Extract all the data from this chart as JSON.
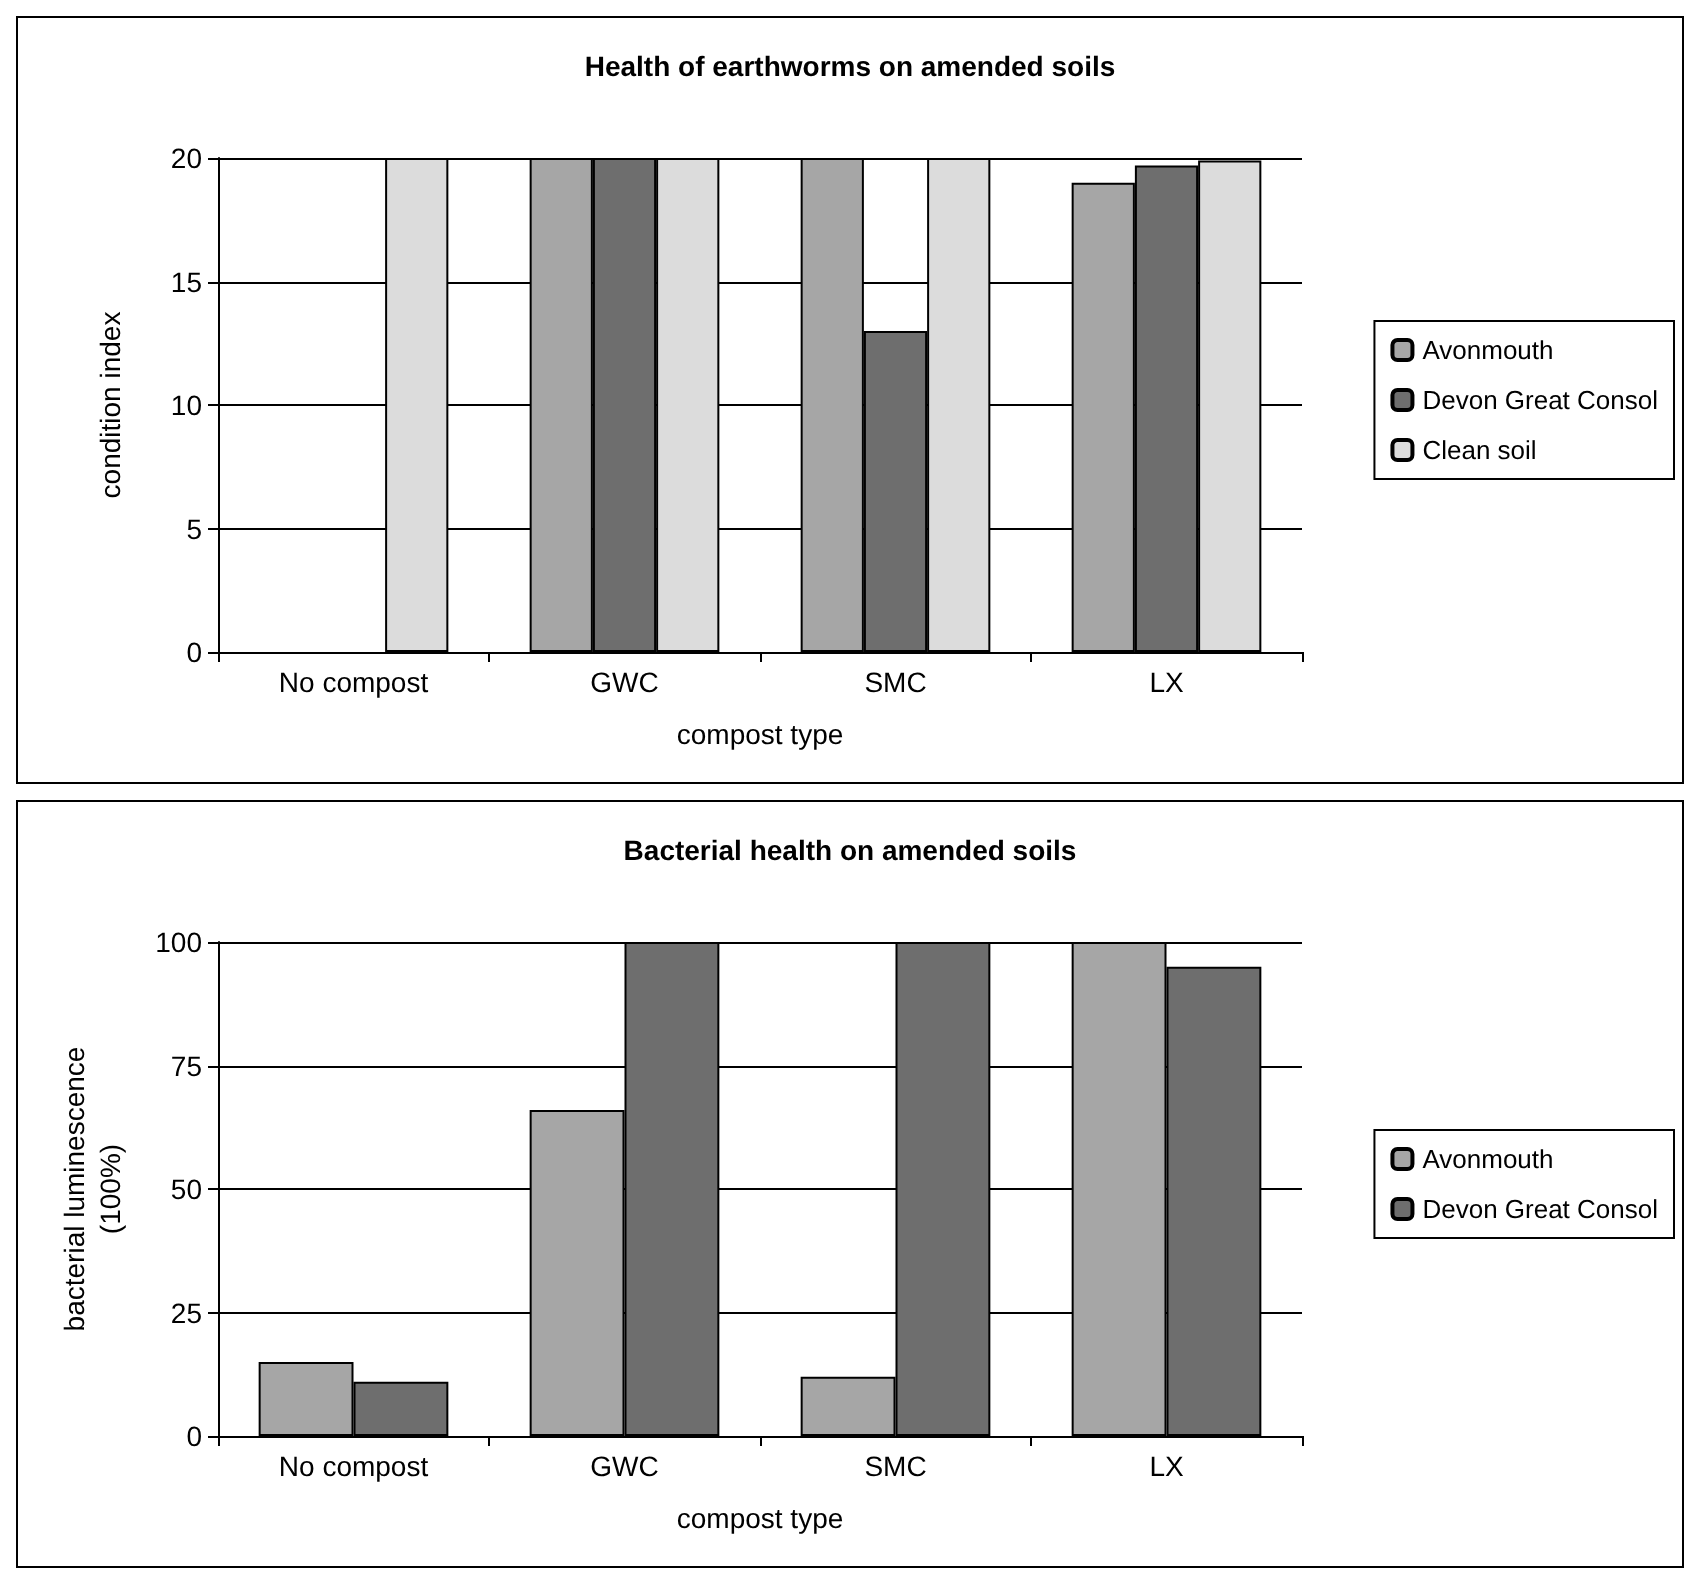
{
  "chart_data": [
    {
      "type": "bar",
      "title": "Health of earthworms on amended soils",
      "xlabel": "compost type",
      "ylabel": "condition index",
      "categories": [
        "No compost",
        "GWC",
        "SMC",
        "LX"
      ],
      "series": [
        {
          "name": "Avonmouth",
          "color": "#a6a6a6",
          "values": [
            null,
            20,
            20,
            19
          ]
        },
        {
          "name": "Devon Great Consol",
          "color": "#6e6e6e",
          "values": [
            null,
            20,
            13,
            19.7
          ]
        },
        {
          "name": "Clean soil",
          "color": "#dcdcdc",
          "values": [
            20,
            20,
            20,
            19.9
          ]
        }
      ],
      "ylim": [
        0,
        20
      ],
      "yticks": [
        0,
        5,
        10,
        15,
        20
      ],
      "grid": "y",
      "legend": "right"
    },
    {
      "type": "bar",
      "title": "Bacterial health on amended soils",
      "xlabel": "compost type",
      "ylabel": "bacterial luminescence\n(100%)",
      "categories": [
        "No compost",
        "GWC",
        "SMC",
        "LX"
      ],
      "series": [
        {
          "name": "Avonmouth",
          "color": "#a6a6a6",
          "values": [
            15,
            66,
            12,
            100
          ]
        },
        {
          "name": "Devon Great Consol",
          "color": "#6e6e6e",
          "values": [
            11,
            100,
            100,
            95
          ]
        }
      ],
      "ylim": [
        0,
        100
      ],
      "yticks": [
        0,
        25,
        50,
        75,
        100
      ],
      "grid": "y",
      "legend": "right"
    }
  ]
}
